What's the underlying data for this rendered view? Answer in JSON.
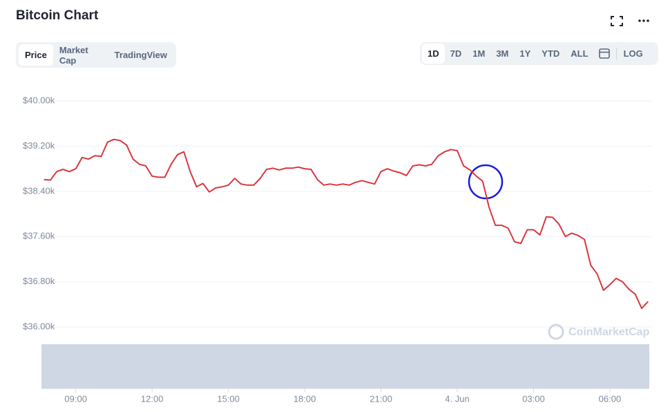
{
  "header": {
    "title": "Bitcoin Chart",
    "tabs": [
      "Price",
      "Market Cap",
      "TradingView"
    ],
    "ranges": [
      "1D",
      "7D",
      "1M",
      "3M",
      "1Y",
      "YTD",
      "ALL"
    ],
    "log": "LOG"
  },
  "chart_data": {
    "type": "line",
    "color": "#d9363e",
    "grid": true,
    "watermark": "CoinMarketCap",
    "x": [
      7.75,
      8,
      8.25,
      8.5,
      8.75,
      9,
      9.25,
      9.5,
      9.75,
      10,
      10.25,
      10.5,
      10.75,
      11,
      11.25,
      11.5,
      11.75,
      12,
      12.25,
      12.5,
      12.75,
      13,
      13.25,
      13.5,
      13.75,
      14,
      14.25,
      14.5,
      14.75,
      15,
      15.25,
      15.5,
      15.75,
      16,
      16.25,
      16.5,
      16.75,
      17,
      17.25,
      17.5,
      17.75,
      18,
      18.25,
      18.5,
      18.75,
      19,
      19.25,
      19.5,
      19.75,
      20,
      20.25,
      20.5,
      20.75,
      21,
      21.25,
      21.5,
      21.75,
      22,
      22.25,
      22.5,
      22.75,
      23,
      23.25,
      23.5,
      23.75,
      24,
      24.25,
      24.5,
      24.75,
      25,
      25.25,
      25.5,
      25.75,
      26,
      26.25,
      26.5,
      26.75,
      27,
      27.25,
      27.5,
      27.75,
      28,
      28.25,
      28.5,
      28.75,
      29,
      29.25,
      29.5,
      29.75,
      30,
      30.25,
      30.5,
      30.75,
      31,
      31.25,
      31.5
    ],
    "values": [
      38610,
      38600,
      38750,
      38790,
      38750,
      38800,
      39000,
      38970,
      39030,
      39020,
      39270,
      39320,
      39300,
      39220,
      38970,
      38880,
      38850,
      38670,
      38650,
      38650,
      38880,
      39050,
      39100,
      38750,
      38480,
      38540,
      38390,
      38460,
      38480,
      38510,
      38630,
      38530,
      38510,
      38510,
      38630,
      38790,
      38810,
      38780,
      38810,
      38810,
      38830,
      38800,
      38790,
      38610,
      38510,
      38530,
      38510,
      38530,
      38510,
      38560,
      38590,
      38560,
      38530,
      38750,
      38800,
      38760,
      38730,
      38680,
      38850,
      38870,
      38850,
      38880,
      39030,
      39100,
      39140,
      39120,
      38850,
      38780,
      38670,
      38580,
      38120,
      37800,
      37800,
      37750,
      37510,
      37480,
      37720,
      37720,
      37630,
      37950,
      37940,
      37820,
      37600,
      37660,
      37620,
      37550,
      37090,
      36940,
      36650,
      36750,
      36860,
      36800,
      36670,
      36580,
      36330,
      36450
    ],
    "xlim": [
      7.65,
      31.55
    ],
    "xticks": [
      {
        "value": 9,
        "label": "09:00"
      },
      {
        "value": 12,
        "label": "12:00"
      },
      {
        "value": 15,
        "label": "15:00"
      },
      {
        "value": 18,
        "label": "18:00"
      },
      {
        "value": 21,
        "label": "21:00"
      },
      {
        "value": 24,
        "label": "4. Jun"
      },
      {
        "value": 27,
        "label": "03:00"
      },
      {
        "value": 30,
        "label": "06:00"
      }
    ],
    "ylim": [
      35800,
      40300
    ],
    "yticks": [
      {
        "value": 36000,
        "label": "$36.00k"
      },
      {
        "value": 36800,
        "label": "$36.80k"
      },
      {
        "value": 37600,
        "label": "$37.60k"
      },
      {
        "value": 38400,
        "label": "$38.40k"
      },
      {
        "value": 39200,
        "label": "$39.20k"
      },
      {
        "value": 40000,
        "label": "$40.00k"
      }
    ]
  }
}
